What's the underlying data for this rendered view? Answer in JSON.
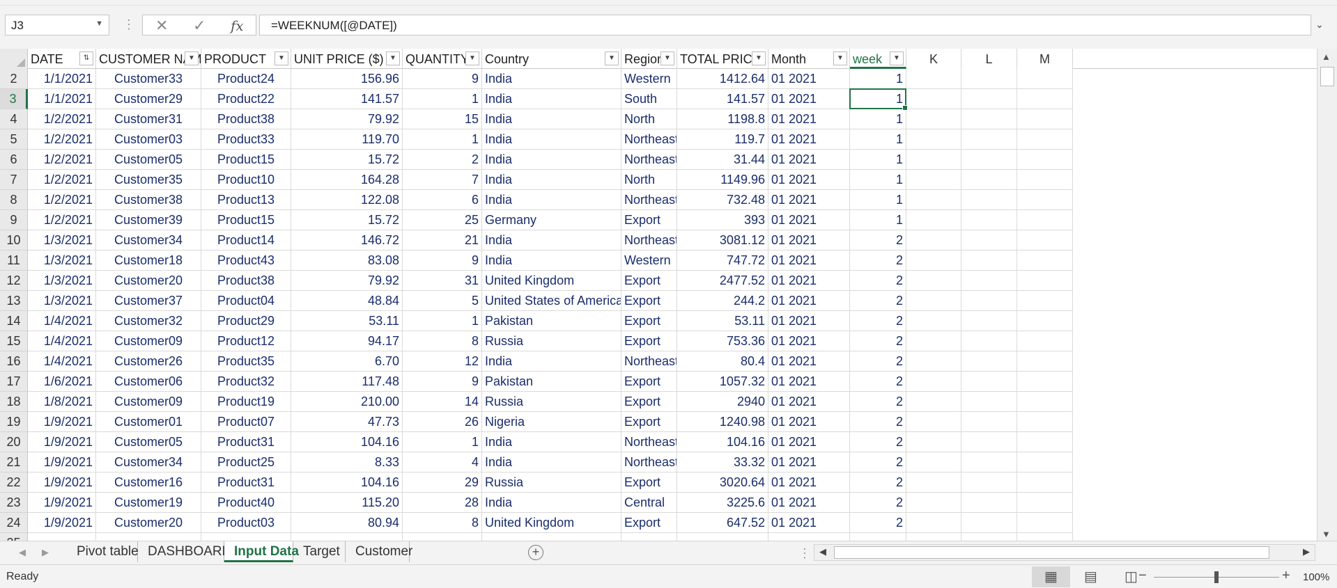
{
  "formula_bar": {
    "name_box": "J3",
    "dots": "⋮",
    "cancel_icon": "✕",
    "enter_icon": "✓",
    "function_icon": "fx",
    "formula": "=WEEKNUM([@DATE])",
    "expand_icon": "⌄"
  },
  "columns": [
    {
      "header": "DATE",
      "filter": "⇅",
      "align": "r"
    },
    {
      "header": "CUSTOMER NAM",
      "filter": "▼",
      "align": "c"
    },
    {
      "header": "PRODUCT",
      "filter": "▼",
      "align": "c"
    },
    {
      "header": "UNIT PRICE ($)",
      "filter": "▼",
      "align": "r"
    },
    {
      "header": "QUANTITY",
      "filter": "▼",
      "align": "r"
    },
    {
      "header": "Country",
      "filter": "▼",
      "align": "l"
    },
    {
      "header": "Region",
      "filter": "▼",
      "align": "l"
    },
    {
      "header": "TOTAL PRICE",
      "filter": "▼",
      "align": "r"
    },
    {
      "header": "Month",
      "filter": "▼",
      "align": "l"
    },
    {
      "header": "week",
      "filter": "▼",
      "align": "r"
    },
    {
      "header": "K",
      "filter": "",
      "align": "r"
    },
    {
      "header": "L",
      "filter": "",
      "align": "r"
    },
    {
      "header": "M",
      "filter": "",
      "align": "r"
    }
  ],
  "rows": [
    {
      "num": "2",
      "cells": [
        "1/1/2021",
        "Customer33",
        "Product24",
        "156.96",
        "9",
        "India",
        "Western",
        "1412.64",
        "01 2021",
        "1"
      ]
    },
    {
      "num": "3",
      "cells": [
        "1/1/2021",
        "Customer29",
        "Product22",
        "141.57",
        "1",
        "India",
        "South",
        "141.57",
        "01 2021",
        "1"
      ]
    },
    {
      "num": "4",
      "cells": [
        "1/2/2021",
        "Customer31",
        "Product38",
        "79.92",
        "15",
        "India",
        "North",
        "1198.8",
        "01 2021",
        "1"
      ]
    },
    {
      "num": "5",
      "cells": [
        "1/2/2021",
        "Customer03",
        "Product33",
        "119.70",
        "1",
        "India",
        "Northeast",
        "119.7",
        "01 2021",
        "1"
      ]
    },
    {
      "num": "6",
      "cells": [
        "1/2/2021",
        "Customer05",
        "Product15",
        "15.72",
        "2",
        "India",
        "Northeast",
        "31.44",
        "01 2021",
        "1"
      ]
    },
    {
      "num": "7",
      "cells": [
        "1/2/2021",
        "Customer35",
        "Product10",
        "164.28",
        "7",
        "India",
        "North",
        "1149.96",
        "01 2021",
        "1"
      ]
    },
    {
      "num": "8",
      "cells": [
        "1/2/2021",
        "Customer38",
        "Product13",
        "122.08",
        "6",
        "India",
        "Northeast",
        "732.48",
        "01 2021",
        "1"
      ]
    },
    {
      "num": "9",
      "cells": [
        "1/2/2021",
        "Customer39",
        "Product15",
        "15.72",
        "25",
        "Germany",
        "Export",
        "393",
        "01 2021",
        "1"
      ]
    },
    {
      "num": "10",
      "cells": [
        "1/3/2021",
        "Customer34",
        "Product14",
        "146.72",
        "21",
        "India",
        "Northeast",
        "3081.12",
        "01 2021",
        "2"
      ]
    },
    {
      "num": "11",
      "cells": [
        "1/3/2021",
        "Customer18",
        "Product43",
        "83.08",
        "9",
        "India",
        "Western",
        "747.72",
        "01 2021",
        "2"
      ]
    },
    {
      "num": "12",
      "cells": [
        "1/3/2021",
        "Customer20",
        "Product38",
        "79.92",
        "31",
        "United Kingdom",
        "Export",
        "2477.52",
        "01 2021",
        "2"
      ]
    },
    {
      "num": "13",
      "cells": [
        "1/3/2021",
        "Customer37",
        "Product04",
        "48.84",
        "5",
        "United States of America",
        "Export",
        "244.2",
        "01 2021",
        "2"
      ]
    },
    {
      "num": "14",
      "cells": [
        "1/4/2021",
        "Customer32",
        "Product29",
        "53.11",
        "1",
        "Pakistan",
        "Export",
        "53.11",
        "01 2021",
        "2"
      ]
    },
    {
      "num": "15",
      "cells": [
        "1/4/2021",
        "Customer09",
        "Product12",
        "94.17",
        "8",
        "Russia",
        "Export",
        "753.36",
        "01 2021",
        "2"
      ]
    },
    {
      "num": "16",
      "cells": [
        "1/4/2021",
        "Customer26",
        "Product35",
        "6.70",
        "12",
        "India",
        "Northeast",
        "80.4",
        "01 2021",
        "2"
      ]
    },
    {
      "num": "17",
      "cells": [
        "1/6/2021",
        "Customer06",
        "Product32",
        "117.48",
        "9",
        "Pakistan",
        "Export",
        "1057.32",
        "01 2021",
        "2"
      ]
    },
    {
      "num": "18",
      "cells": [
        "1/8/2021",
        "Customer09",
        "Product19",
        "210.00",
        "14",
        "Russia",
        "Export",
        "2940",
        "01 2021",
        "2"
      ]
    },
    {
      "num": "19",
      "cells": [
        "1/9/2021",
        "Customer01",
        "Product07",
        "47.73",
        "26",
        "Nigeria",
        "Export",
        "1240.98",
        "01 2021",
        "2"
      ]
    },
    {
      "num": "20",
      "cells": [
        "1/9/2021",
        "Customer05",
        "Product31",
        "104.16",
        "1",
        "India",
        "Northeast",
        "104.16",
        "01 2021",
        "2"
      ]
    },
    {
      "num": "21",
      "cells": [
        "1/9/2021",
        "Customer34",
        "Product25",
        "8.33",
        "4",
        "India",
        "Northeast",
        "33.32",
        "01 2021",
        "2"
      ]
    },
    {
      "num": "22",
      "cells": [
        "1/9/2021",
        "Customer16",
        "Product31",
        "104.16",
        "29",
        "Russia",
        "Export",
        "3020.64",
        "01 2021",
        "2"
      ]
    },
    {
      "num": "23",
      "cells": [
        "1/9/2021",
        "Customer19",
        "Product40",
        "115.20",
        "28",
        "India",
        "Central",
        "3225.6",
        "01 2021",
        "2"
      ]
    },
    {
      "num": "24",
      "cells": [
        "1/9/2021",
        "Customer20",
        "Product03",
        "80.94",
        "8",
        "United Kingdom",
        "Export",
        "647.52",
        "01 2021",
        "2"
      ]
    }
  ],
  "selected": {
    "row_index": 1,
    "col_index": 9
  },
  "scroll": {
    "up_icon": "▲",
    "down_icon": "▼",
    "left_icon": "◀",
    "right_icon": "▶"
  },
  "sheet_nav": {
    "prev_icon": "◀",
    "next_icon": "▶"
  },
  "sheets": [
    {
      "label": "Pivot table",
      "active": false
    },
    {
      "label": "DASHBOARD",
      "active": false
    },
    {
      "label": "Input Data",
      "active": true
    },
    {
      "label": "Target",
      "active": false
    },
    {
      "label": "Customer",
      "active": false
    }
  ],
  "add_sheet_icon": "+",
  "tab_split_icon": "⋮",
  "status": {
    "text": "Ready",
    "zoom_minus": "−",
    "zoom_plus": "+",
    "zoom_level": "100%",
    "zoom_fraction": 0.5
  },
  "view_buttons": [
    {
      "name": "normal-view-icon",
      "glyph": "▦",
      "active": true
    },
    {
      "name": "page-layout-view-icon",
      "glyph": "▤",
      "active": false
    },
    {
      "name": "page-break-preview-icon",
      "glyph": "◫",
      "active": false
    }
  ],
  "colors": {
    "accent": "#217346",
    "cell_text": "#1a2d6b"
  }
}
